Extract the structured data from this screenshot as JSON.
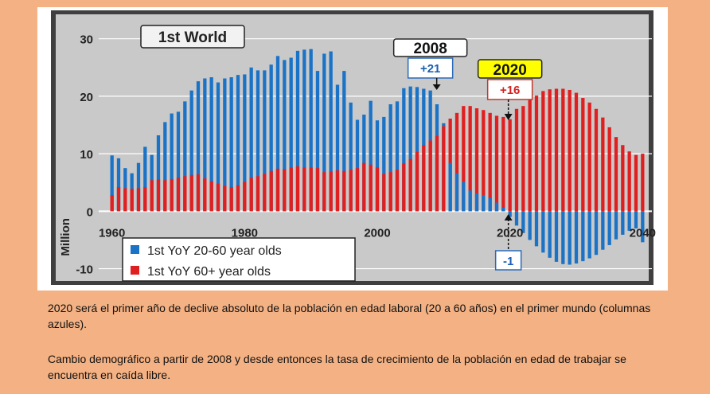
{
  "chart_data": {
    "type": "bar",
    "title": "1st World",
    "ylabel": "Million",
    "xlabel": "",
    "ylim": [
      -12,
      33
    ],
    "xlim": [
      1958,
      2042
    ],
    "x_ticks": [
      1960,
      1980,
      2000,
      2020,
      2040
    ],
    "y_ticks": [
      -10,
      0,
      10,
      20,
      30
    ],
    "grid": true,
    "legend_position": "bottom-left",
    "colors": {
      "plot_bg": "#c9c9c9",
      "frame": "#3f3f3f",
      "series_working_age": "#1a73c7",
      "series_elderly": "#e02020",
      "highlight_box": "#ffff00"
    },
    "series": [
      {
        "name": "1st YoY 20-60 year olds",
        "x": [
          1960,
          1961,
          1962,
          1963,
          1964,
          1965,
          1966,
          1967,
          1968,
          1969,
          1970,
          1971,
          1972,
          1973,
          1974,
          1975,
          1976,
          1977,
          1978,
          1979,
          1980,
          1981,
          1982,
          1983,
          1984,
          1985,
          1986,
          1987,
          1988,
          1989,
          1990,
          1991,
          1992,
          1993,
          1994,
          1995,
          1996,
          1997,
          1998,
          1999,
          2000,
          2001,
          2002,
          2003,
          2004,
          2005,
          2006,
          2007,
          2008,
          2009,
          2010,
          2011,
          2012,
          2013,
          2014,
          2015,
          2016,
          2017,
          2018,
          2019,
          2020,
          2021,
          2022,
          2023,
          2024,
          2025,
          2026,
          2027,
          2028,
          2029,
          2030,
          2031,
          2032,
          2033,
          2034,
          2035,
          2036,
          2037,
          2038,
          2039,
          2040
        ],
        "values": [
          9.7,
          9.2,
          7.5,
          6.6,
          8.4,
          11.2,
          9.8,
          13.2,
          15.5,
          17.0,
          17.3,
          19.1,
          21.0,
          22.6,
          23.1,
          23.3,
          22.4,
          23.1,
          23.3,
          23.7,
          23.8,
          25.0,
          24.5,
          24.5,
          25.5,
          27.0,
          26.3,
          26.7,
          27.9,
          28.1,
          28.2,
          24.4,
          27.4,
          27.8,
          22.0,
          24.4,
          18.9,
          15.9,
          16.8,
          19.2,
          15.8,
          16.4,
          18.6,
          19.1,
          21.4,
          21.7,
          21.6,
          21.3,
          21.0,
          18.6,
          15.3,
          8.4,
          6.6,
          5.1,
          3.6,
          3.1,
          2.8,
          2.3,
          1.5,
          0.6,
          -1,
          -2.5,
          -3.8,
          -5.0,
          -6.1,
          -7.2,
          -8.1,
          -8.8,
          -9.2,
          -9.3,
          -9.1,
          -8.7,
          -8.2,
          -7.6,
          -6.7,
          -5.9,
          -4.9,
          -4.1,
          -3.4,
          -3.0,
          -5.4
        ]
      },
      {
        "name": "1st YoY 60+ year olds",
        "x": [
          1960,
          1961,
          1962,
          1963,
          1964,
          1965,
          1966,
          1967,
          1968,
          1969,
          1970,
          1971,
          1972,
          1973,
          1974,
          1975,
          1976,
          1977,
          1978,
          1979,
          1980,
          1981,
          1982,
          1983,
          1984,
          1985,
          1986,
          1987,
          1988,
          1989,
          1990,
          1991,
          1992,
          1993,
          1994,
          1995,
          1996,
          1997,
          1998,
          1999,
          2000,
          2001,
          2002,
          2003,
          2004,
          2005,
          2006,
          2007,
          2008,
          2009,
          2010,
          2011,
          2012,
          2013,
          2014,
          2015,
          2016,
          2017,
          2018,
          2019,
          2020,
          2021,
          2022,
          2023,
          2024,
          2025,
          2026,
          2027,
          2028,
          2029,
          2030,
          2031,
          2032,
          2033,
          2034,
          2035,
          2036,
          2037,
          2038,
          2039,
          2040
        ],
        "values": [
          2.8,
          4.2,
          4.0,
          3.9,
          4.0,
          4.2,
          5.4,
          5.5,
          5.4,
          5.6,
          5.8,
          6.1,
          6.3,
          6.4,
          5.7,
          5.2,
          4.8,
          4.4,
          4.2,
          4.5,
          5.1,
          5.8,
          6.1,
          6.5,
          7.0,
          7.4,
          7.3,
          7.6,
          7.8,
          7.6,
          7.6,
          7.5,
          6.8,
          6.9,
          7.1,
          7.0,
          7.2,
          7.5,
          8.4,
          8.1,
          7.6,
          6.5,
          6.8,
          7.2,
          8.3,
          9.1,
          10.3,
          11.5,
          12.3,
          13.1,
          14.8,
          16.1,
          17.1,
          18.3,
          18.3,
          17.9,
          17.6,
          17.1,
          16.6,
          16.4,
          16,
          17.8,
          18.3,
          19.4,
          20.1,
          20.9,
          21.2,
          21.3,
          21.3,
          21.1,
          20.6,
          19.7,
          18.9,
          17.8,
          16.3,
          14.6,
          12.9,
          11.5,
          10.4,
          9.8,
          10.0
        ]
      }
    ],
    "annotations": [
      {
        "label": "2008",
        "value_label": "+21",
        "year": 2008,
        "y": 21
      },
      {
        "label": "2020",
        "value_label": "+16",
        "year": 2020,
        "y": 16,
        "highlight": true
      },
      {
        "label": "",
        "value_label": "-1",
        "year": 2020,
        "y": -1
      }
    ]
  },
  "captions": [
    "2020 será el primer año de declive absoluto de la población en edad laboral (20 a 60 años) en el primer mundo (columnas azules).",
    "Cambio demográfico a partir de 2008 y desde entonces la tasa de crecimiento de la población en edad de trabajar se encuentra en caída libre."
  ]
}
